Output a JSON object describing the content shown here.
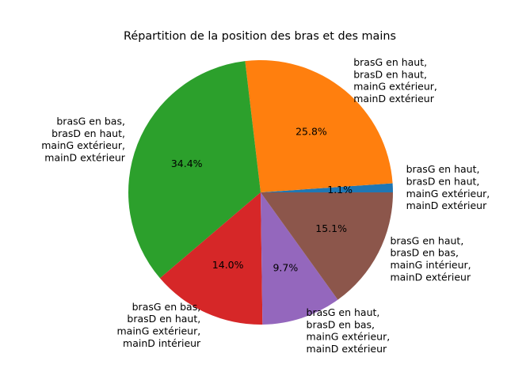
{
  "chart_data": {
    "type": "pie",
    "title": "Répartition de la position des bras et des mains",
    "start_angle_deg": 0,
    "direction": "counterclockwise",
    "slices": [
      {
        "label_lines": [
          "brasG en haut,",
          "brasD en haut,",
          "mainG extérieur,",
          "mainD extérieur"
        ],
        "value": 1.1,
        "pct_text": "1.1%",
        "color": "#1f77b4"
      },
      {
        "label_lines": [
          "brasG en haut,",
          "brasD en haut,",
          "mainG extérieur,",
          "mainD extérieur"
        ],
        "value": 25.8,
        "pct_text": "25.8%",
        "color": "#ff7f0e"
      },
      {
        "label_lines": [
          "brasG en bas,",
          "brasD en haut,",
          "mainG extérieur,",
          "mainD extérieur"
        ],
        "value": 34.4,
        "pct_text": "34.4%",
        "color": "#2ca02c"
      },
      {
        "label_lines": [
          "brasG en bas,",
          "brasD en haut,",
          "mainG extérieur,",
          "mainD intérieur"
        ],
        "value": 14.0,
        "pct_text": "14.0%",
        "color": "#d62728"
      },
      {
        "label_lines": [
          "brasG en haut,",
          "brasD en bas,",
          "mainG extérieur,",
          "mainD extérieur"
        ],
        "value": 9.7,
        "pct_text": "9.7%",
        "color": "#9467bd"
      },
      {
        "label_lines": [
          "brasG en haut,",
          "brasD en bas,",
          "mainG intérieur,",
          "mainD extérieur"
        ],
        "value": 15.1,
        "pct_text": "15.1%",
        "color": "#8c564b"
      }
    ]
  }
}
